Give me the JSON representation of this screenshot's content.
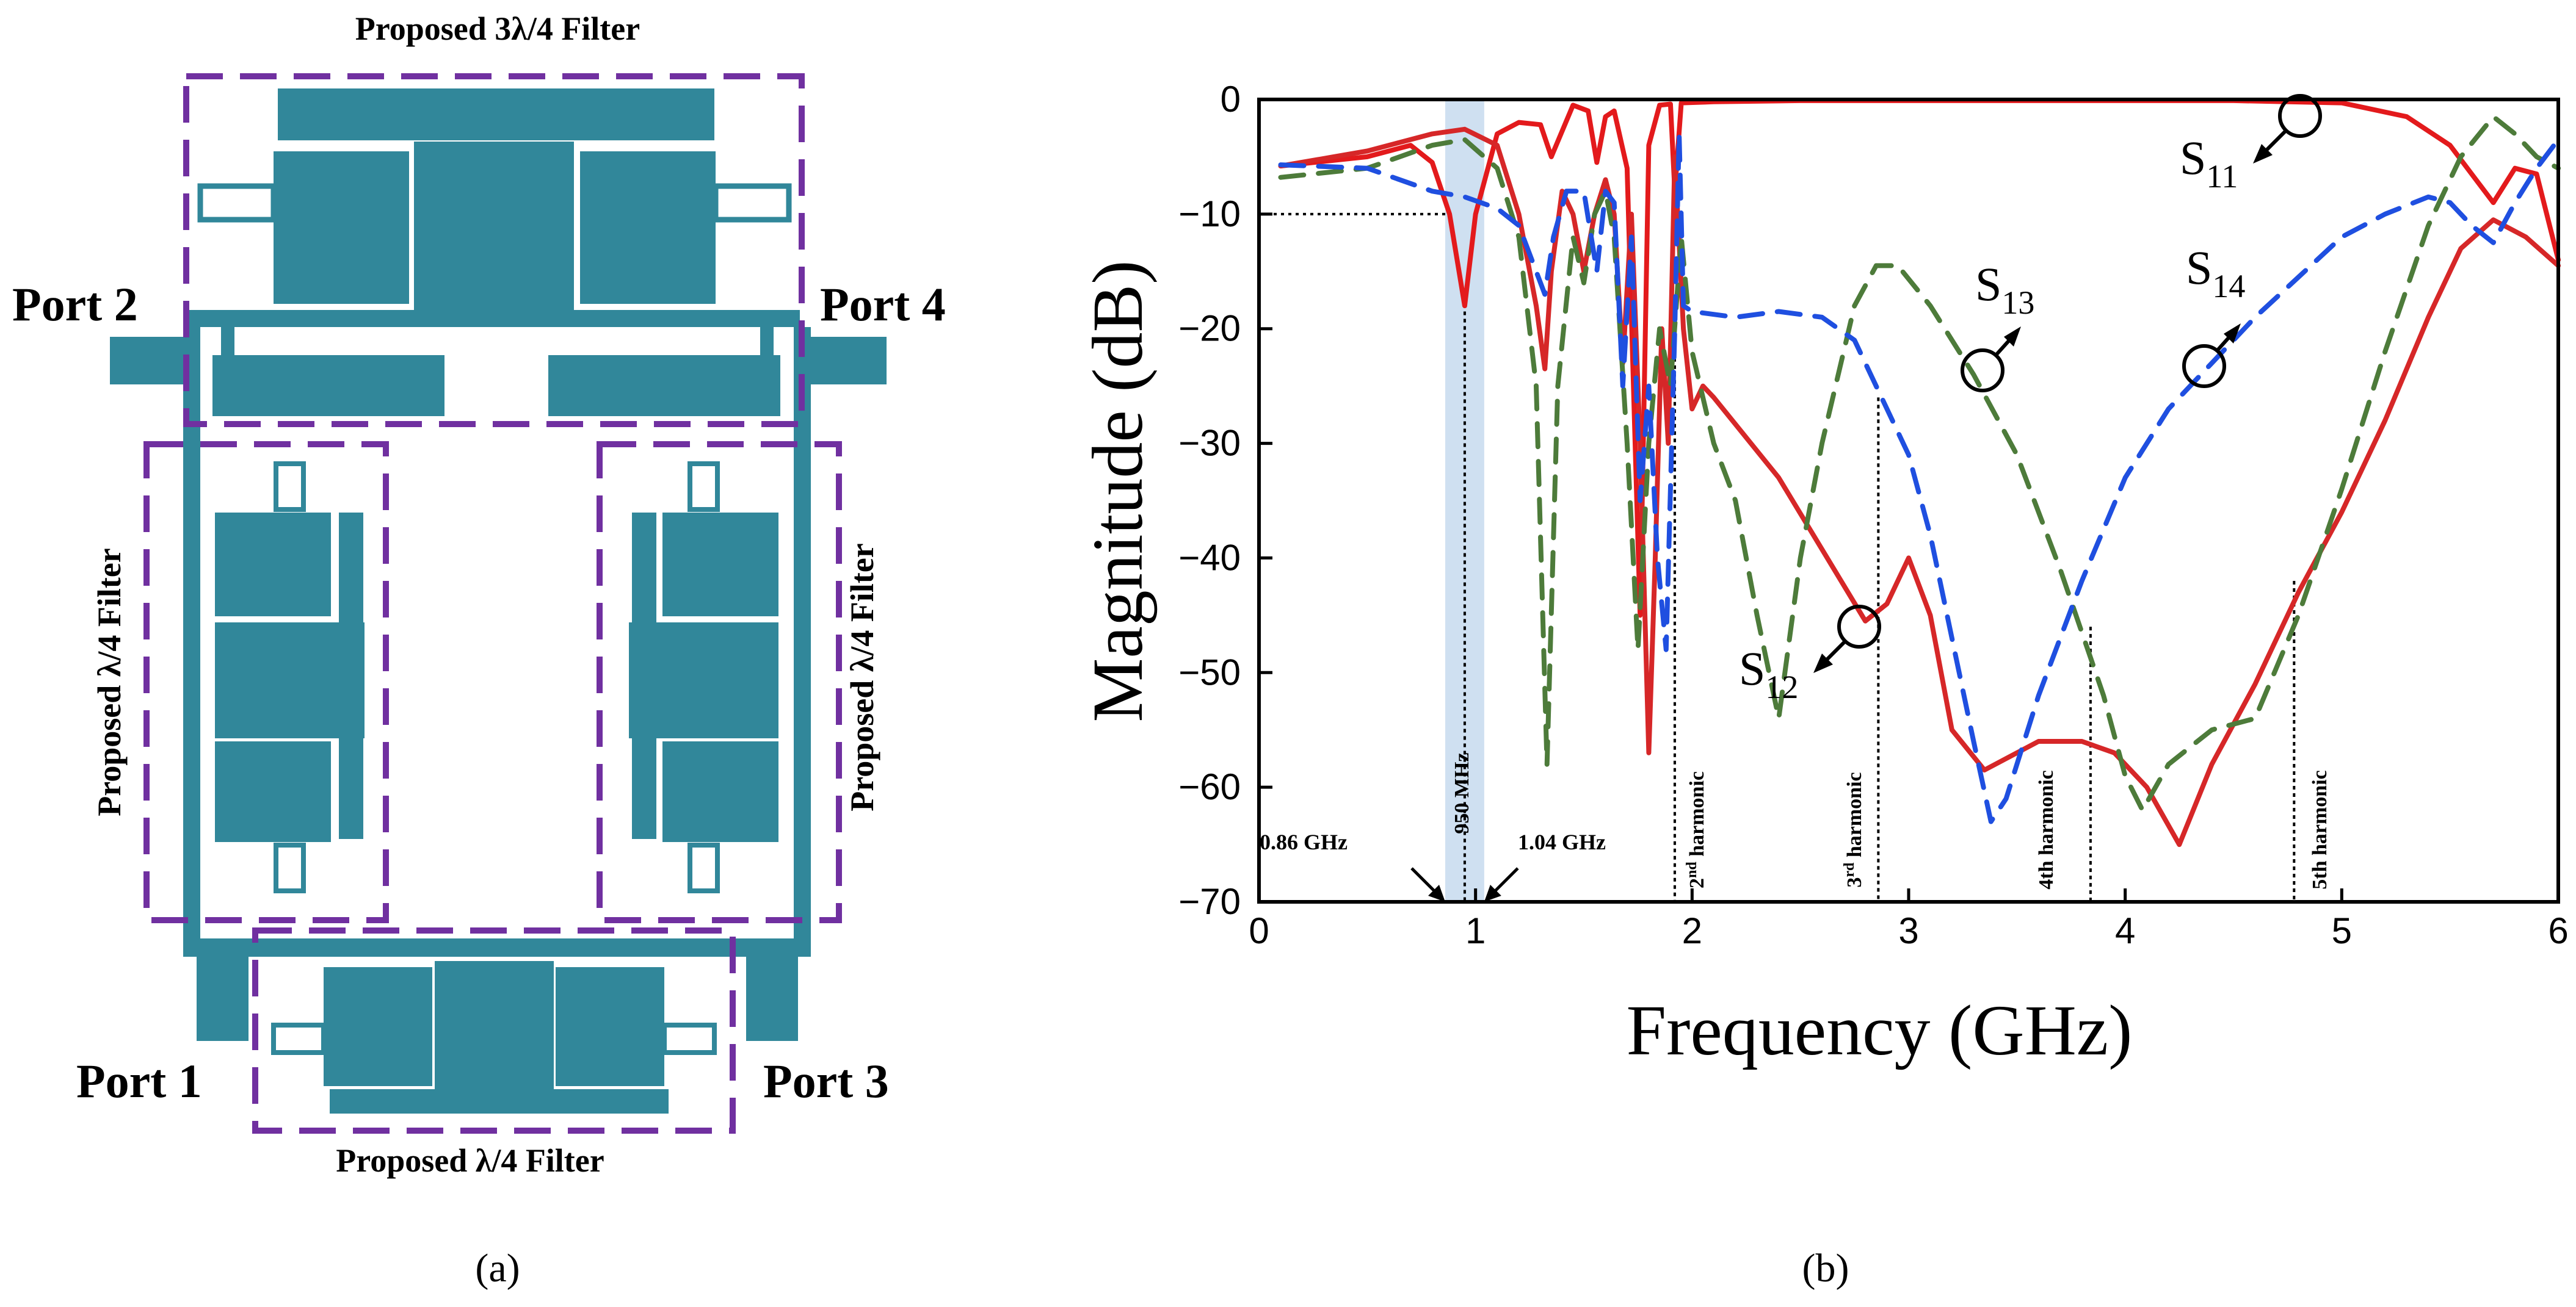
{
  "panel_a": {
    "title_top": "Proposed 3λ/4  Filter",
    "title_bottom": "Proposed λ/4  Filter",
    "title_left": "Proposed λ/4  Filter",
    "title_right": "Proposed λ/4  Filter",
    "port1": "Port 1",
    "port2": "Port 2",
    "port3": "Port 3",
    "port4": "Port 4",
    "caption": "(a)",
    "colors": {
      "metal": "#31879a",
      "box": "#7030a0"
    }
  },
  "panel_b": {
    "caption": "(b)",
    "band_left_label": "0.86 GHz",
    "band_right_label": "1.04 GHz",
    "center_label": "950 MHz",
    "harmonic_labels": [
      {
        "base": "2",
        "sup": "nd",
        "rest": " harmonic",
        "f": 1.92
      },
      {
        "base": "3",
        "sup": "rd",
        "rest": " harmonic",
        "f": 2.86
      },
      {
        "base": "4th harmonic",
        "sup": "",
        "rest": "",
        "f": 3.84
      },
      {
        "base": "5th harmonic",
        "sup": "",
        "rest": "",
        "f": 4.78
      }
    ],
    "curve_labels": [
      {
        "base": "S",
        "sub": "11"
      },
      {
        "base": "S",
        "sub": "12"
      },
      {
        "base": "S",
        "sub": "13"
      },
      {
        "base": "S",
        "sub": "14"
      }
    ]
  },
  "chart_data": {
    "type": "line",
    "title": "",
    "xlabel": "Frequency (GHz)",
    "ylabel": "Magnitude (dB)",
    "xlim": [
      0,
      6
    ],
    "ylim": [
      -70,
      0
    ],
    "xticks": [
      0,
      1,
      2,
      3,
      4,
      5,
      6
    ],
    "yticks": [
      0,
      -10,
      -20,
      -30,
      -40,
      -50,
      -60,
      -70
    ],
    "ytick_labels": [
      "0",
      "−10",
      "−20",
      "−30",
      "−40",
      "−50",
      "−60",
      "−70"
    ],
    "passband_ghz": [
      0.86,
      1.04
    ],
    "reference_level_db": -10,
    "series": [
      {
        "name": "S11",
        "color": "#e31a1c",
        "style": "solid",
        "points": [
          [
            0.1,
            -5.8
          ],
          [
            0.5,
            -5
          ],
          [
            0.7,
            -4
          ],
          [
            0.8,
            -5.5
          ],
          [
            0.88,
            -10
          ],
          [
            0.95,
            -18
          ],
          [
            1.0,
            -10
          ],
          [
            1.1,
            -3
          ],
          [
            1.2,
            -2
          ],
          [
            1.3,
            -2.2
          ],
          [
            1.35,
            -5
          ],
          [
            1.45,
            -0.5
          ],
          [
            1.52,
            -1
          ],
          [
            1.56,
            -5.5
          ],
          [
            1.6,
            -1.5
          ],
          [
            1.64,
            -1
          ],
          [
            1.7,
            -6
          ],
          [
            1.76,
            -45
          ],
          [
            1.8,
            -4
          ],
          [
            1.85,
            -0.5
          ],
          [
            1.9,
            -0.4
          ],
          [
            1.92,
            -8
          ],
          [
            1.95,
            -0.3
          ],
          [
            2.1,
            -0.2
          ],
          [
            2.5,
            -0.1
          ],
          [
            3.0,
            -0.1
          ],
          [
            4.0,
            -0.1
          ],
          [
            4.5,
            -0.1
          ],
          [
            5.0,
            -0.3
          ],
          [
            5.3,
            -1.5
          ],
          [
            5.5,
            -4
          ],
          [
            5.6,
            -6.5
          ],
          [
            5.7,
            -9
          ],
          [
            5.8,
            -6
          ],
          [
            5.9,
            -6.5
          ],
          [
            6.0,
            -14
          ]
        ]
      },
      {
        "name": "S12",
        "color": "#d62728",
        "style": "solid",
        "points": [
          [
            0.1,
            -5.8
          ],
          [
            0.5,
            -4.5
          ],
          [
            0.8,
            -3
          ],
          [
            0.95,
            -2.6
          ],
          [
            1.1,
            -4
          ],
          [
            1.2,
            -10
          ],
          [
            1.28,
            -18
          ],
          [
            1.32,
            -23.5
          ],
          [
            1.35,
            -15
          ],
          [
            1.4,
            -8
          ],
          [
            1.45,
            -10
          ],
          [
            1.5,
            -15
          ],
          [
            1.55,
            -10
          ],
          [
            1.6,
            -7
          ],
          [
            1.64,
            -10
          ],
          [
            1.68,
            -23
          ],
          [
            1.72,
            -10
          ],
          [
            1.76,
            -30
          ],
          [
            1.8,
            -57
          ],
          [
            1.83,
            -40
          ],
          [
            1.86,
            -20
          ],
          [
            1.89,
            -30
          ],
          [
            1.92,
            -5
          ],
          [
            1.96,
            -20
          ],
          [
            2.0,
            -27
          ],
          [
            2.05,
            -25
          ],
          [
            2.1,
            -26
          ],
          [
            2.4,
            -33
          ],
          [
            2.8,
            -45.5
          ],
          [
            2.9,
            -44
          ],
          [
            3.0,
            -40
          ],
          [
            3.1,
            -45
          ],
          [
            3.2,
            -55
          ],
          [
            3.35,
            -58.5
          ],
          [
            3.5,
            -57
          ],
          [
            3.6,
            -56
          ],
          [
            3.8,
            -56
          ],
          [
            3.95,
            -57
          ],
          [
            4.1,
            -60
          ],
          [
            4.25,
            -65
          ],
          [
            4.4,
            -58
          ],
          [
            4.6,
            -51
          ],
          [
            4.8,
            -43
          ],
          [
            5.0,
            -36
          ],
          [
            5.2,
            -28
          ],
          [
            5.4,
            -19
          ],
          [
            5.55,
            -13
          ],
          [
            5.7,
            -10.5
          ],
          [
            5.85,
            -12
          ],
          [
            6.0,
            -14.5
          ]
        ]
      },
      {
        "name": "S13",
        "color": "#4d7b3a",
        "style": "dashed",
        "points": [
          [
            0.1,
            -6.8
          ],
          [
            0.5,
            -6
          ],
          [
            0.8,
            -4
          ],
          [
            0.95,
            -3.5
          ],
          [
            1.1,
            -6
          ],
          [
            1.2,
            -12
          ],
          [
            1.28,
            -25
          ],
          [
            1.33,
            -58
          ],
          [
            1.38,
            -25
          ],
          [
            1.45,
            -12
          ],
          [
            1.5,
            -16
          ],
          [
            1.55,
            -10
          ],
          [
            1.6,
            -8
          ],
          [
            1.64,
            -12
          ],
          [
            1.7,
            -30
          ],
          [
            1.75,
            -48
          ],
          [
            1.8,
            -30
          ],
          [
            1.85,
            -20
          ],
          [
            1.9,
            -25
          ],
          [
            1.95,
            -12
          ],
          [
            2.0,
            -22
          ],
          [
            2.1,
            -30
          ],
          [
            2.2,
            -35
          ],
          [
            2.3,
            -45
          ],
          [
            2.4,
            -54
          ],
          [
            2.5,
            -40
          ],
          [
            2.6,
            -30
          ],
          [
            2.75,
            -18
          ],
          [
            2.85,
            -14.5
          ],
          [
            2.95,
            -14.5
          ],
          [
            3.1,
            -18
          ],
          [
            3.3,
            -24
          ],
          [
            3.5,
            -31
          ],
          [
            3.7,
            -41
          ],
          [
            3.9,
            -52
          ],
          [
            4.0,
            -59
          ],
          [
            4.08,
            -62
          ],
          [
            4.2,
            -58
          ],
          [
            4.4,
            -55
          ],
          [
            4.6,
            -54
          ],
          [
            4.8,
            -45
          ],
          [
            5.0,
            -34
          ],
          [
            5.2,
            -22
          ],
          [
            5.4,
            -11
          ],
          [
            5.55,
            -5
          ],
          [
            5.7,
            -1.5
          ],
          [
            5.8,
            -3
          ],
          [
            5.9,
            -5
          ],
          [
            6.0,
            -6
          ]
        ]
      },
      {
        "name": "S14",
        "color": "#1f4fe0",
        "style": "dashed",
        "points": [
          [
            0.1,
            -5.7
          ],
          [
            0.5,
            -6
          ],
          [
            0.8,
            -8
          ],
          [
            0.95,
            -8.5
          ],
          [
            1.1,
            -9.5
          ],
          [
            1.2,
            -11
          ],
          [
            1.28,
            -15
          ],
          [
            1.32,
            -17
          ],
          [
            1.36,
            -12
          ],
          [
            1.42,
            -8
          ],
          [
            1.5,
            -8
          ],
          [
            1.56,
            -15
          ],
          [
            1.6,
            -8
          ],
          [
            1.64,
            -9
          ],
          [
            1.68,
            -25
          ],
          [
            1.72,
            -12
          ],
          [
            1.76,
            -35
          ],
          [
            1.8,
            -25
          ],
          [
            1.84,
            -40
          ],
          [
            1.88,
            -48
          ],
          [
            1.92,
            -20
          ],
          [
            1.94,
            -3
          ],
          [
            1.96,
            -18
          ],
          [
            2.0,
            -18.5
          ],
          [
            2.2,
            -19
          ],
          [
            2.4,
            -18.5
          ],
          [
            2.6,
            -19
          ],
          [
            2.75,
            -21
          ],
          [
            2.9,
            -27
          ],
          [
            3.0,
            -31
          ],
          [
            3.1,
            -38
          ],
          [
            3.2,
            -47
          ],
          [
            3.3,
            -56
          ],
          [
            3.38,
            -63
          ],
          [
            3.45,
            -61
          ],
          [
            3.6,
            -52
          ],
          [
            3.8,
            -42
          ],
          [
            4.0,
            -33
          ],
          [
            4.2,
            -27
          ],
          [
            4.4,
            -23
          ],
          [
            4.6,
            -19
          ],
          [
            4.8,
            -15.5
          ],
          [
            5.0,
            -12
          ],
          [
            5.2,
            -10
          ],
          [
            5.4,
            -8.5
          ],
          [
            5.5,
            -9
          ],
          [
            5.6,
            -11
          ],
          [
            5.7,
            -12.5
          ],
          [
            5.8,
            -9
          ],
          [
            5.9,
            -6
          ],
          [
            6.0,
            -3.5
          ]
        ]
      }
    ]
  }
}
